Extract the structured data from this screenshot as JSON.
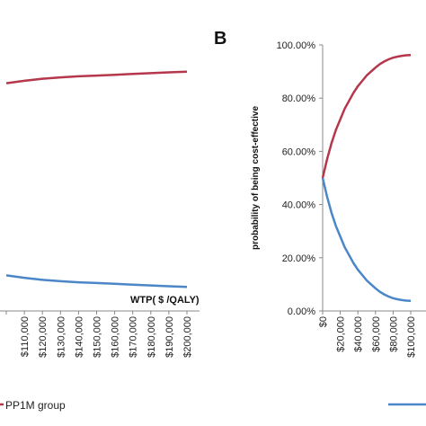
{
  "chart_data": [
    {
      "type": "line",
      "panel": "A",
      "xlabel": "WTP( $ /QALY)",
      "x_ticks": [
        "$110,000",
        "$120,000",
        "$130,000",
        "$140,000",
        "$150,000",
        "$160,000",
        "$170,000",
        "$180,000",
        "$190,000",
        "$200,000"
      ],
      "series": [
        {
          "name": "PP1M group",
          "color": "#b5374b",
          "x": [
            100000,
            110000,
            120000,
            130000,
            140000,
            150000,
            160000,
            170000,
            180000,
            190000,
            200000
          ],
          "y": [
            0.865,
            0.874,
            0.882,
            0.887,
            0.891,
            0.894,
            0.897,
            0.9,
            0.903,
            0.906,
            0.909
          ]
        },
        {
          "name": "",
          "color": "#4a86c8",
          "x": [
            100000,
            110000,
            120000,
            130000,
            140000,
            150000,
            160000,
            170000,
            180000,
            190000,
            200000
          ],
          "y": [
            0.135,
            0.126,
            0.118,
            0.113,
            0.109,
            0.106,
            0.103,
            0.1,
            0.097,
            0.094,
            0.091
          ]
        }
      ]
    },
    {
      "type": "line",
      "panel": "B",
      "ylabel": "probability of being cost-effective",
      "y_ticks": [
        "0.00%",
        "20.00%",
        "40.00%",
        "60.00%",
        "80.00%",
        "100.00%"
      ],
      "x_ticks": [
        "$0",
        "$20,000",
        "$40,000",
        "$60,000",
        "$80,000",
        "$100,000"
      ],
      "ylim": [
        0,
        100
      ],
      "xlim": [
        0,
        100000
      ],
      "series": [
        {
          "color": "#b5374b",
          "x": [
            0,
            5000,
            10000,
            15000,
            20000,
            25000,
            30000,
            35000,
            40000,
            45000,
            50000,
            55000,
            60000,
            65000,
            70000,
            75000,
            80000,
            85000,
            90000,
            95000,
            100000
          ],
          "y": [
            50,
            57,
            63,
            68,
            72,
            76,
            79,
            82,
            84.5,
            86.5,
            88.5,
            90,
            91.5,
            92.8,
            93.8,
            94.6,
            95.2,
            95.6,
            95.9,
            96.1,
            96.2
          ]
        },
        {
          "color": "#4a86c8",
          "x": [
            0,
            5000,
            10000,
            15000,
            20000,
            25000,
            30000,
            35000,
            40000,
            45000,
            50000,
            55000,
            60000,
            65000,
            70000,
            75000,
            80000,
            85000,
            90000,
            95000,
            100000
          ],
          "y": [
            50,
            43,
            37,
            32,
            28,
            24,
            21,
            18,
            15.5,
            13.5,
            11.5,
            10,
            8.5,
            7.2,
            6.2,
            5.4,
            4.8,
            4.4,
            4.1,
            3.9,
            3.8
          ]
        }
      ]
    }
  ],
  "legend": {
    "left_label": "PP1M group"
  },
  "panel_b_letter": "B"
}
